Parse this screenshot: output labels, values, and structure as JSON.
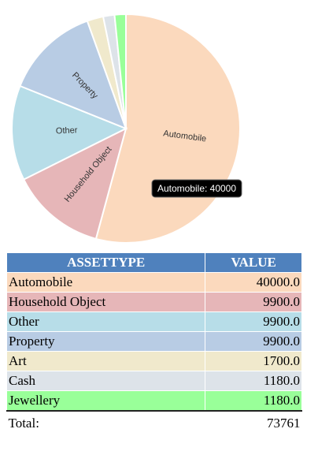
{
  "chart_data": {
    "type": "pie",
    "categories": [
      "Automobile",
      "Household Object",
      "Other",
      "Property",
      "Art",
      "Cash",
      "Jewellery"
    ],
    "values": [
      40000,
      9900,
      9900,
      9900,
      1700,
      1180,
      1180
    ],
    "colors": [
      "#fbd9bd",
      "#e6b6b8",
      "#b7dde8",
      "#b8cce4",
      "#f0e9cc",
      "#dde3e9",
      "#99ff99"
    ],
    "tooltip": "Automobile: 40000"
  },
  "table": {
    "header": [
      "ASSETTYPE",
      "VALUE"
    ],
    "rows": [
      [
        "Automobile",
        "40000.0"
      ],
      [
        "Household Object",
        "9900.0"
      ],
      [
        "Other",
        "9900.0"
      ],
      [
        "Property",
        "9900.0"
      ],
      [
        "Art",
        "1700.0"
      ],
      [
        "Cash",
        "1180.0"
      ],
      [
        "Jewellery",
        "1180.0"
      ]
    ],
    "total": [
      "Total:",
      "73761"
    ]
  }
}
